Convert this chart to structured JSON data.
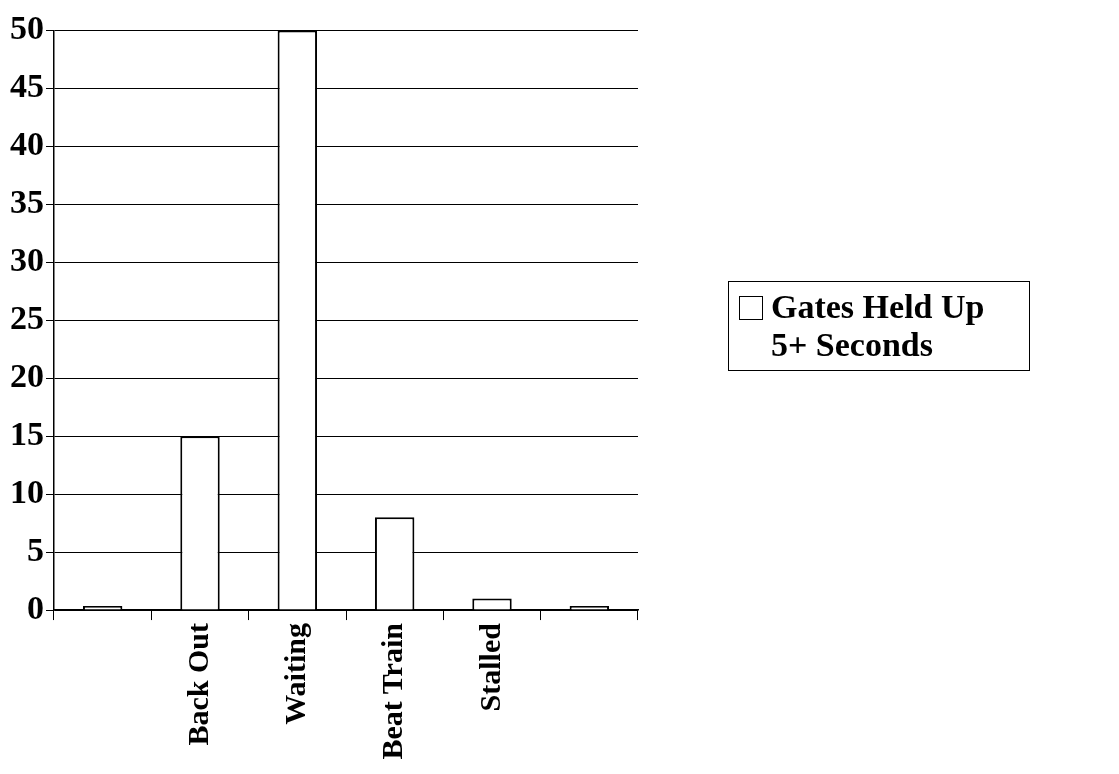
{
  "chart_data": {
    "type": "bar",
    "categories": [
      null,
      "Back Out",
      "Waiting",
      "Beat Train",
      "Stalled",
      null
    ],
    "series": [
      {
        "name": "Gates Held Up 5+ Seconds",
        "color": "#ffffff",
        "values": [
          0,
          15,
          50,
          8,
          1,
          0
        ]
      }
    ],
    "ylim": [
      0,
      50
    ],
    "yticks": [
      0,
      5,
      10,
      15,
      20,
      25,
      30,
      35,
      40,
      45,
      50
    ],
    "grid": "y",
    "legend": "right"
  }
}
